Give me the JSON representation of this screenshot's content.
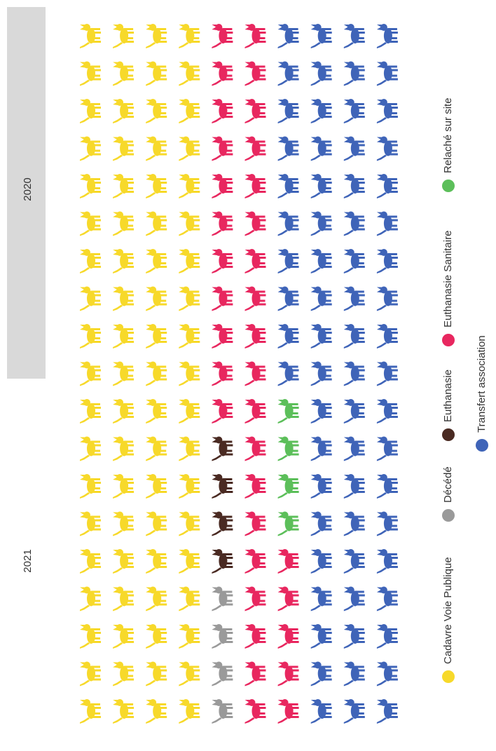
{
  "chart_data": {
    "type": "waffle",
    "categories": [
      "Cadavre Voie Publique",
      "Décédé",
      "Euthanasie",
      "Euthanasie Sanitaire",
      "Relaché sur site",
      "Transfert association"
    ],
    "colors": [
      "#f7d92a",
      "#9a9a9a",
      "#4a2a22",
      "#e8275f",
      "#5cbf5a",
      "#3f64b8"
    ],
    "series": [
      {
        "name": "2021",
        "values": [
          36,
          4,
          4,
          15,
          4,
          27
        ]
      },
      {
        "name": "2020",
        "values": [
          40,
          0,
          0,
          20,
          0,
          40
        ]
      }
    ]
  }
}
